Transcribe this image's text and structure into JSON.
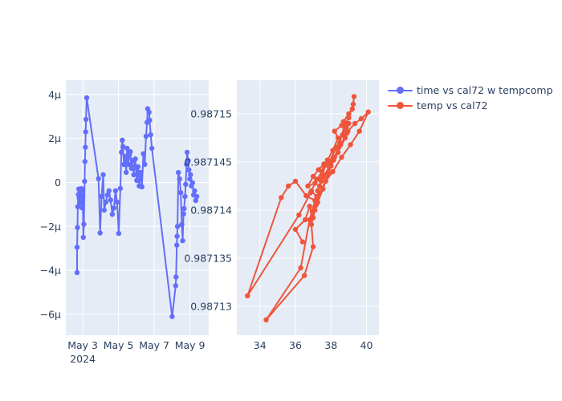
{
  "colors": {
    "page_background": "#ffffff",
    "plot_background": "#E5ECF6",
    "gridline": "#ffffff",
    "text": "#2a3f5f",
    "series_blue": "#636EFA",
    "series_red": "#EF553B"
  },
  "legend": {
    "position": "top-right"
  },
  "chart_data": [
    {
      "type": "line",
      "name": "time vs cal72 w tempcomp",
      "color": "#636EFA",
      "marker": "circle",
      "x_axis_kind": "date",
      "x_range": [
        2.05,
        10.05
      ],
      "y_range": [
        -6.95,
        4.65
      ],
      "y_unit": "micro (1e-6)",
      "grid": true,
      "x_ticks": [
        {
          "label": "May 3",
          "value": 3
        },
        {
          "label": "May 5",
          "value": 5
        },
        {
          "label": "May 7",
          "value": 7
        },
        {
          "label": "May 9",
          "value": 9
        }
      ],
      "x_axis_extra_label": {
        "label": "2024",
        "under_value": 3
      },
      "y_ticks": [
        {
          "label": "4µ",
          "value": 4
        },
        {
          "label": "2µ",
          "value": 2
        },
        {
          "label": "0",
          "value": 0
        },
        {
          "label": "−2µ",
          "value": -2
        },
        {
          "label": "−4µ",
          "value": -4
        },
        {
          "label": "−6µ",
          "value": -6
        }
      ],
      "x": [
        2.68,
        2.68,
        2.7,
        2.72,
        2.75,
        2.78,
        2.8,
        2.83,
        2.85,
        2.88,
        2.9,
        2.93,
        2.95,
        2.97,
        3.0,
        3.03,
        3.06,
        3.1,
        3.12,
        3.14,
        3.16,
        3.18,
        3.22,
        3.88,
        3.97,
        4.05,
        4.14,
        4.2,
        4.29,
        4.38,
        4.47,
        4.56,
        4.65,
        4.74,
        4.83,
        4.92,
        5.01,
        5.1,
        5.16,
        5.21,
        5.25,
        5.3,
        5.37,
        5.43,
        5.48,
        5.55,
        5.61,
        5.66,
        5.72,
        5.79,
        5.85,
        5.94,
        6.02,
        6.09,
        6.16,
        6.24,
        6.31,
        6.39,
        6.47,
        6.54,
        6.6,
        6.63,
        6.71,
        6.74,
        6.8,
        6.87,
        8.0,
        8.2,
        8.22,
        8.26,
        8.28,
        8.3,
        8.35,
        8.42,
        8.48,
        8.54,
        8.59,
        8.64,
        8.67,
        8.72,
        8.76,
        8.81,
        8.84,
        8.9,
        8.94,
        8.99,
        9.03,
        9.08,
        9.14,
        9.2,
        9.26,
        9.32,
        9.38
      ],
      "y": [
        -4.1,
        -2.95,
        -2.05,
        -1.1,
        -0.55,
        -0.3,
        -0.72,
        -0.38,
        -0.92,
        -0.45,
        -0.78,
        -0.28,
        -1.15,
        -0.35,
        -0.6,
        -2.5,
        -1.9,
        0.05,
        0.95,
        1.6,
        2.3,
        2.87,
        3.85,
        0.17,
        -2.3,
        -0.64,
        0.35,
        -1.26,
        -0.9,
        -0.57,
        -0.38,
        -0.8,
        -1.45,
        -1.16,
        -0.38,
        -0.9,
        -2.32,
        -0.27,
        1.37,
        1.92,
        1.63,
        0.82,
        1.19,
        0.46,
        1.55,
        0.82,
        1.26,
        1.4,
        0.64,
        1.0,
        0.35,
        1.07,
        0.09,
        0.71,
        -0.16,
        0.46,
        -0.2,
        1.3,
        0.82,
        2.1,
        2.73,
        3.35,
        3.19,
        2.83,
        2.17,
        1.55,
        -6.1,
        -4.7,
        -4.3,
        -2.85,
        -2.45,
        -2.0,
        0.45,
        0.16,
        -0.46,
        -1.92,
        -2.65,
        -1.43,
        -1.19,
        -0.64,
        -0.09,
        0.82,
        1.37,
        1.0,
        0.57,
        0.16,
        0.35,
        -0.16,
        -0.02,
        -0.57,
        -0.38,
        -0.82,
        -0.64
      ]
    },
    {
      "type": "line",
      "name": "temp vs cal72",
      "color": "#EF553B",
      "marker": "circle",
      "x_axis_kind": "linear",
      "x_range": [
        32.7,
        40.7
      ],
      "y_range": [
        0.987127,
        0.9871535
      ],
      "grid": true,
      "x_ticks": [
        {
          "label": "34",
          "value": 34
        },
        {
          "label": "36",
          "value": 36
        },
        {
          "label": "38",
          "value": 38
        },
        {
          "label": "40",
          "value": 40
        }
      ],
      "y_ticks": [
        {
          "label": "0.98715",
          "value": 0.98715
        },
        {
          "label": "0.987145",
          "value": 0.987145
        },
        {
          "label": "0.98714",
          "value": 0.98714
        },
        {
          "label": "0.987135",
          "value": 0.987135
        },
        {
          "label": "0.98713",
          "value": 0.98713
        }
      ],
      "x": [
        36.4,
        36.0,
        36.55,
        36.8,
        37.0,
        37.2,
        36.9,
        37.1,
        36.7,
        37.0,
        37.3,
        37.6,
        37.4,
        37.8,
        38.1,
        38.4,
        38.2,
        38.6,
        38.9,
        38.7,
        39.0,
        39.2,
        39.3,
        39.25,
        39.0,
        38.75,
        38.5,
        38.2,
        37.9,
        37.6,
        37.35,
        37.15,
        36.95,
        37.25,
        37.55,
        37.85,
        38.15,
        38.55,
        38.95,
        39.35,
        39.7,
        40.1,
        39.6,
        39.1,
        38.6,
        38.1,
        37.7,
        37.35,
        37.1,
        36.9,
        37.0,
        36.5,
        34.35,
        36.3,
        36.8,
        37.1,
        36.6,
        36.0,
        35.6,
        35.2,
        33.3,
        36.2,
        36.85,
        37.2,
        37.5,
        37.9,
        38.3,
        38.65,
        39.0,
        38.8,
        38.4,
        38.0,
        37.6,
        37.25,
        37.45
      ],
      "y": [
        0.9871367,
        0.987138,
        0.987139,
        0.9871404,
        0.9871392,
        0.9871414,
        0.987142,
        0.9871428,
        0.9871425,
        0.9871435,
        0.9871442,
        0.9871448,
        0.9871432,
        0.9871452,
        0.9871462,
        0.9871475,
        0.9871482,
        0.9871488,
        0.987148,
        0.9871492,
        0.98715,
        0.9871505,
        0.9871518,
        0.987151,
        0.9871496,
        0.9871488,
        0.987147,
        0.9871455,
        0.9871445,
        0.9871435,
        0.9871425,
        0.9871405,
        0.9871398,
        0.9871408,
        0.9871422,
        0.9871438,
        0.9871452,
        0.9871468,
        0.9871482,
        0.987149,
        0.9871495,
        0.9871502,
        0.9871482,
        0.9871468,
        0.9871455,
        0.987144,
        0.987143,
        0.9871418,
        0.98714,
        0.9871385,
        0.9871362,
        0.9871332,
        0.9871286,
        0.987134,
        0.987139,
        0.987141,
        0.9871415,
        0.987143,
        0.9871425,
        0.9871413,
        0.9871311,
        0.9871395,
        0.9871418,
        0.9871432,
        0.987144,
        0.987145,
        0.9871465,
        0.9871478,
        0.987149,
        0.9871475,
        0.987146,
        0.9871446,
        0.9871436,
        0.987142,
        0.987143
      ]
    }
  ]
}
